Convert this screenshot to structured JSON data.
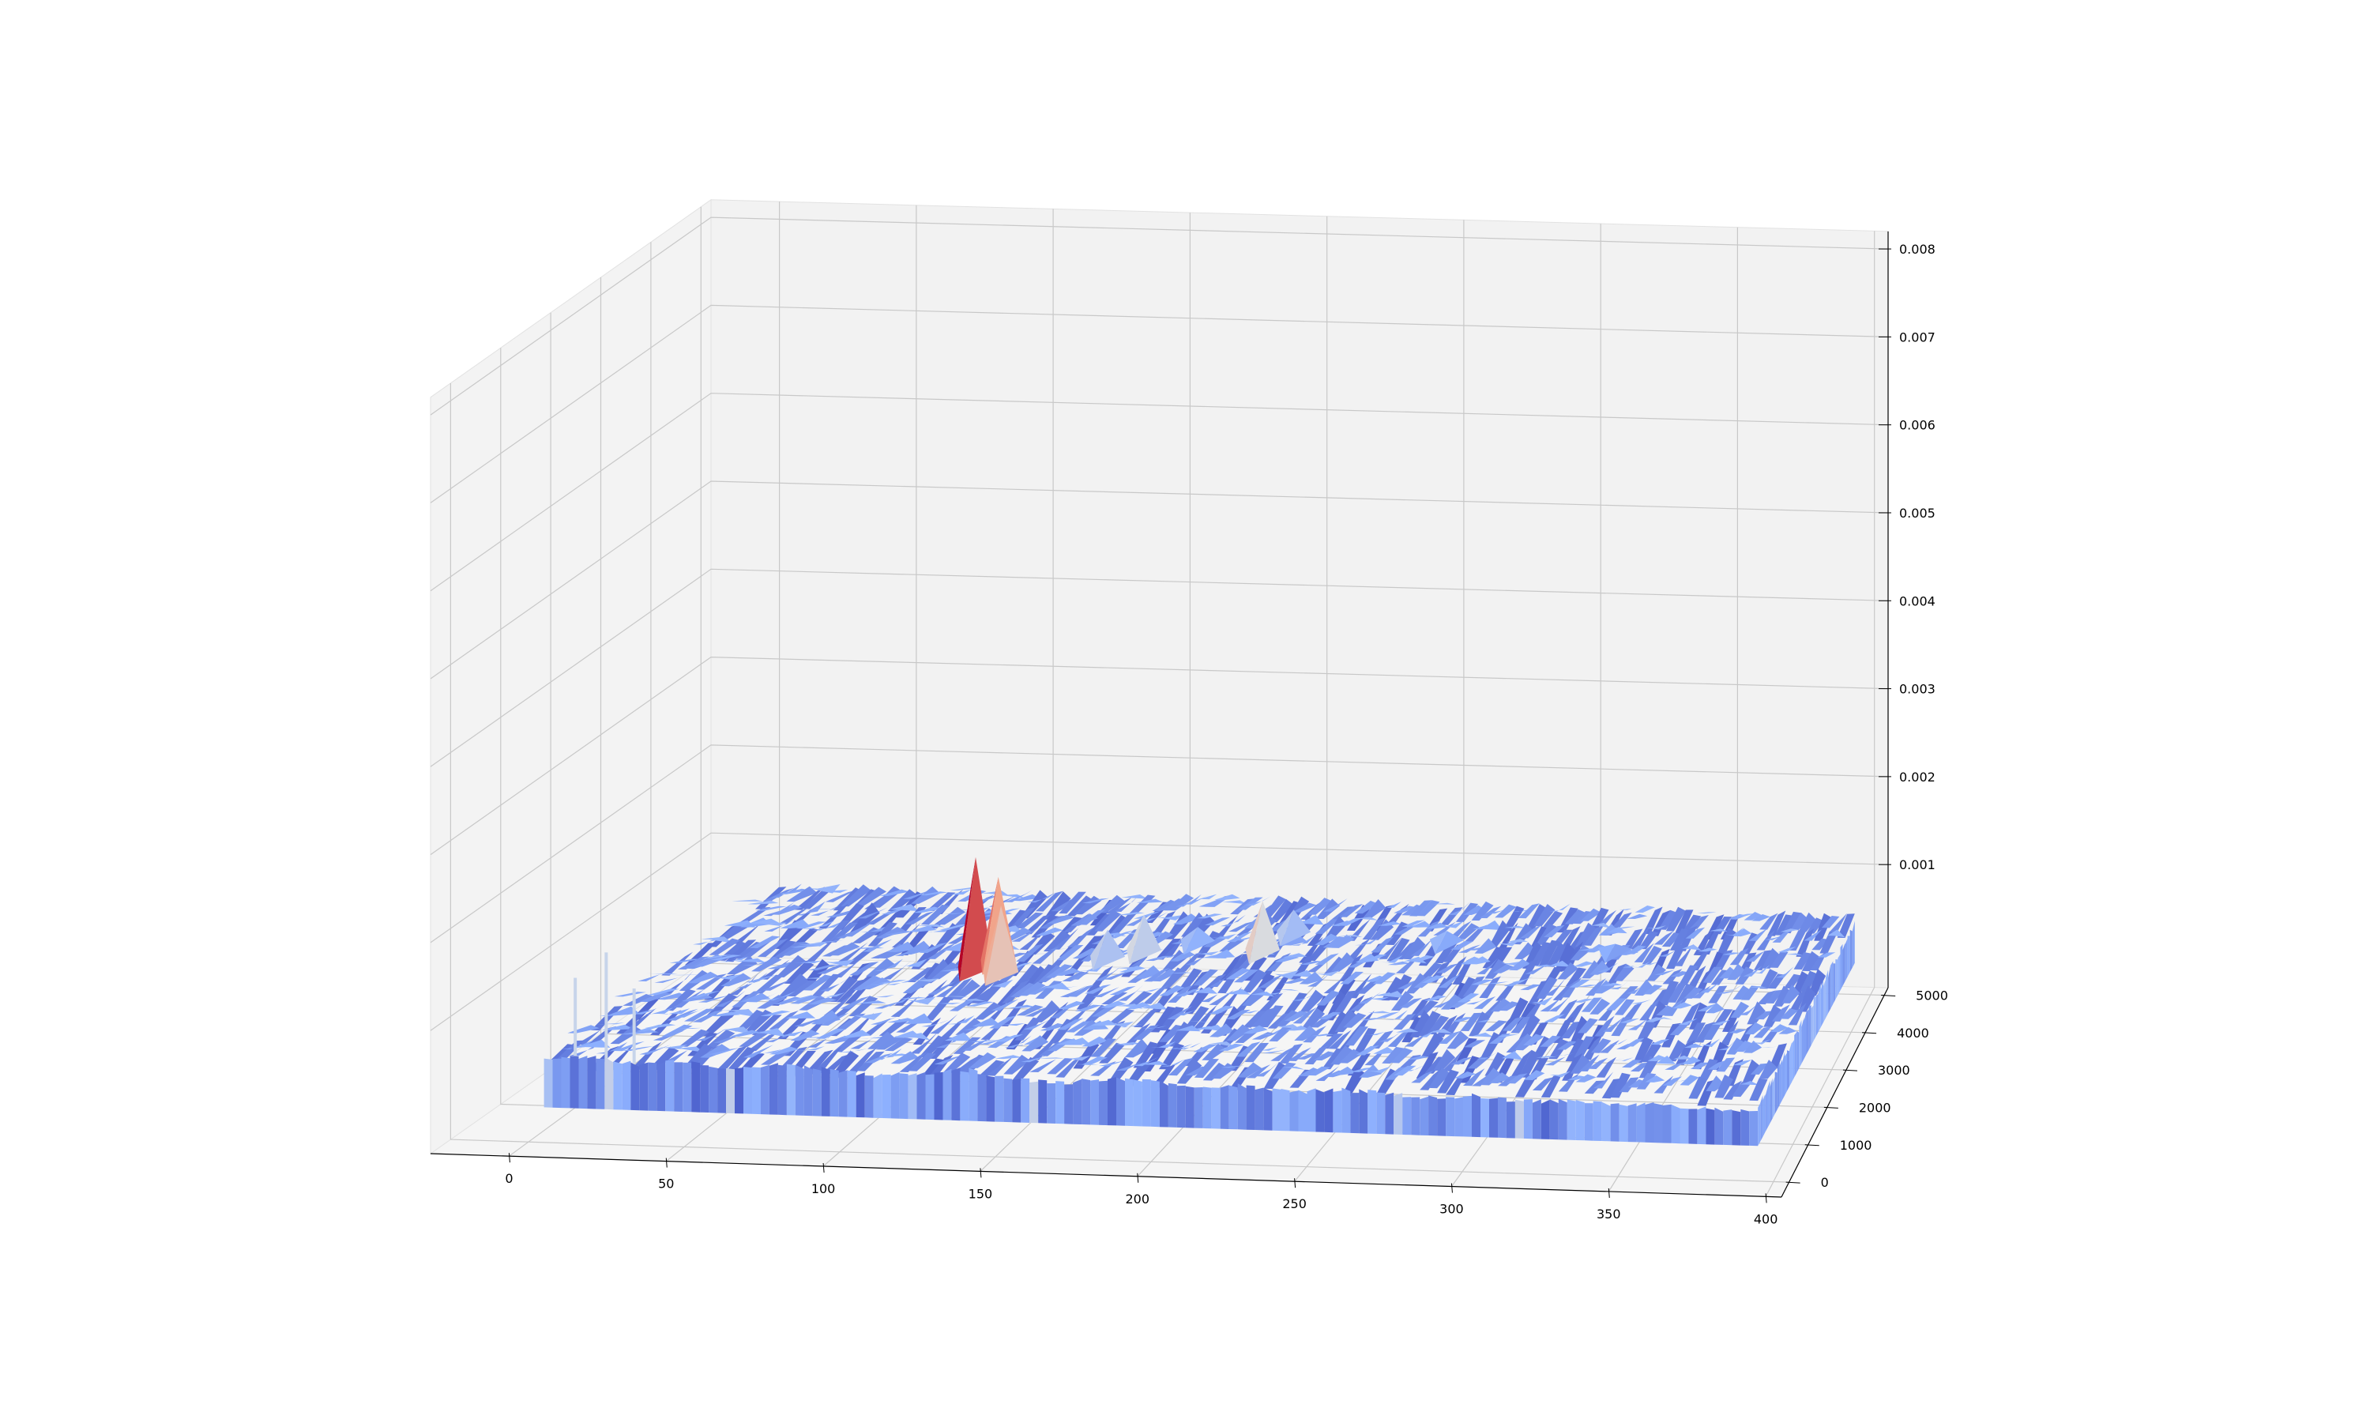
{
  "chart_data": {
    "type": "surface3d",
    "title": "",
    "xlabel": "",
    "ylabel": "",
    "zlabel": "",
    "colormap": "coolwarm",
    "colormap_stops": [
      "#3b4cc0",
      "#8db0fe",
      "#dddddd",
      "#f49a7b",
      "#b40426"
    ],
    "grid": true,
    "pane_color": "#f2f2f2",
    "x_ticks": [
      0,
      50,
      100,
      150,
      200,
      250,
      300,
      350,
      400
    ],
    "y_ticks": [
      0,
      1000,
      2000,
      3000,
      4000,
      5000
    ],
    "z_ticks": [
      "0.001",
      "0.002",
      "0.003",
      "0.004",
      "0.005",
      "0.006",
      "0.007",
      "0.008"
    ],
    "xlim": [
      -25,
      405
    ],
    "ylim": [
      -400,
      5200
    ],
    "zlim": [
      -0.0004,
      0.0082
    ],
    "baseline_level": 0.00045,
    "front_edge": {
      "x": [
        5,
        20,
        35,
        50,
        65,
        80,
        95,
        110,
        125,
        140,
        155,
        170,
        185,
        200,
        215,
        230,
        245,
        260,
        275,
        290,
        305,
        320,
        335,
        350,
        365,
        380,
        395
      ],
      "z": [
        0.00055,
        0.0006,
        0.00052,
        0.00058,
        0.0005,
        0.00056,
        0.00054,
        0.00048,
        0.00052,
        0.00058,
        0.0005,
        0.00046,
        0.00053,
        0.00051,
        0.00047,
        0.0005,
        0.00044,
        0.00049,
        0.00046,
        0.00043,
        0.00047,
        0.00042,
        0.00045,
        0.00041,
        0.00044,
        0.0004,
        0.00038
      ]
    },
    "peaks": [
      {
        "x": 110,
        "y": 2600,
        "z": 0.0019
      },
      {
        "x": 115,
        "y": 2800,
        "z": 0.0016
      },
      {
        "x": 120,
        "y": 2500,
        "z": 0.0014
      },
      {
        "x": 150,
        "y": 3000,
        "z": 0.00095
      },
      {
        "x": 160,
        "y": 3200,
        "z": 0.00105
      },
      {
        "x": 175,
        "y": 3500,
        "z": 0.0008
      },
      {
        "x": 200,
        "y": 3300,
        "z": 0.0012
      },
      {
        "x": 205,
        "y": 3800,
        "z": 0.0009
      },
      {
        "x": 260,
        "y": 3700,
        "z": 0.00075
      },
      {
        "x": 320,
        "y": 3600,
        "z": 0.0007
      }
    ],
    "floor_spikes": [
      {
        "x": 12,
        "z": 0.0014
      },
      {
        "x": 22,
        "z": 0.0017
      },
      {
        "x": 31,
        "z": 0.0013
      }
    ]
  }
}
